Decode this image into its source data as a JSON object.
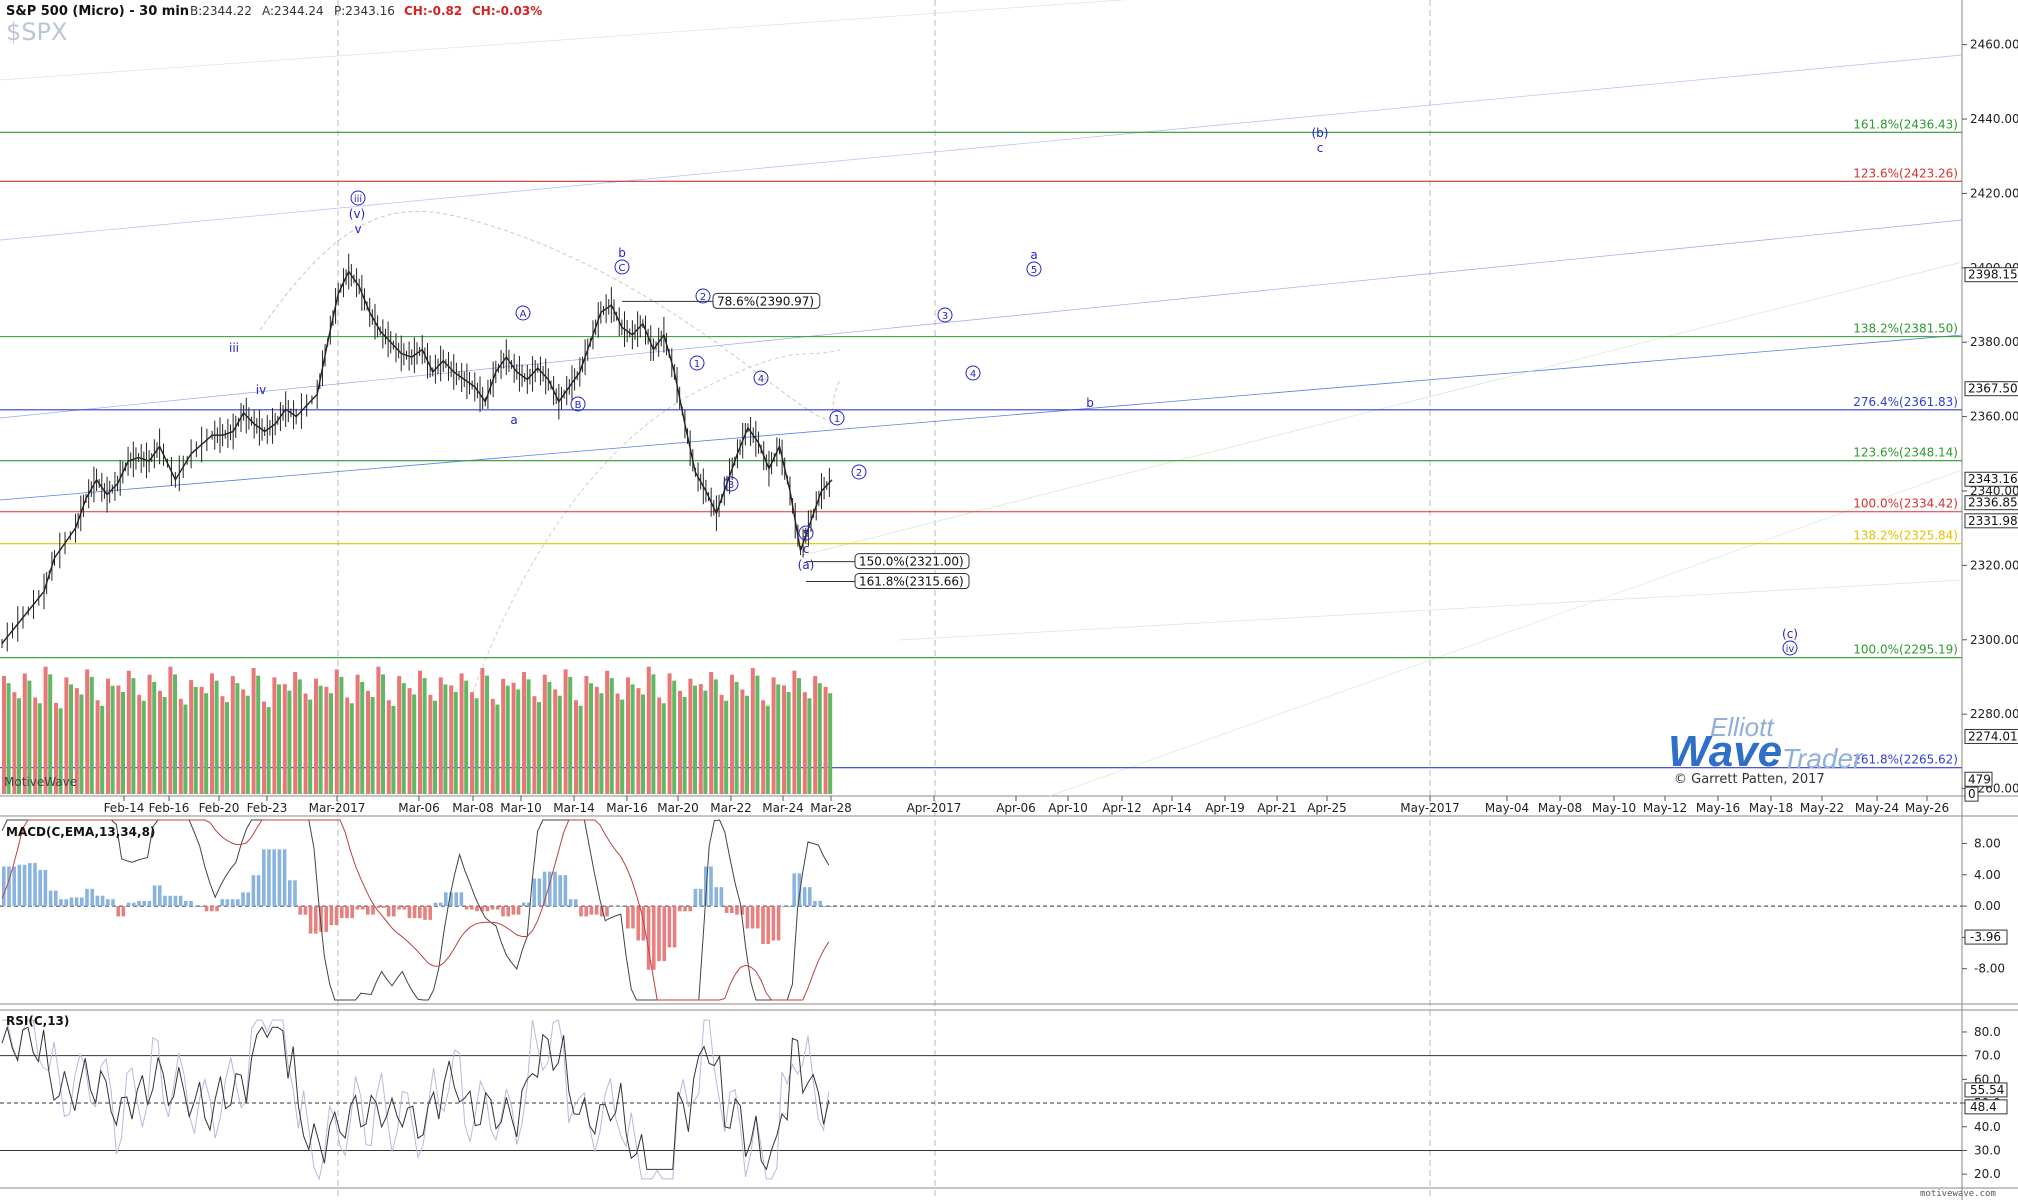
{
  "header": {
    "title": "S&P 500 (Micro) - 30 min",
    "bid": "B:2344.22",
    "ask": "A:2344.24",
    "price": "P:2343.16",
    "change": "CH:-0.82",
    "change_pct": "CH:-0.03%",
    "symbol_watermark": "$SPX"
  },
  "colors": {
    "up_bar": "#222222",
    "green_line": "#2e9a2e",
    "red_line": "#d33333",
    "blue_line": "#2f3fd3",
    "yellow_line": "#e6c000",
    "wave_label": "#2424c8",
    "vol_up": "#62b862",
    "vol_down": "#e87878"
  },
  "branding": {
    "motivewave": "MotiveWave",
    "logo_line1": "Elliott",
    "logo_line2": "Wave",
    "logo_line3": "Trader",
    "copyright": "© Garrett Patten, 2017",
    "site": "motivewave.com"
  },
  "chart_data": [
    {
      "type": "line",
      "title": "S&P 500 (Micro) - 30 min",
      "y_axis": {
        "range": [
          2258,
          2472
        ],
        "ticks": [
          2260,
          2280,
          2300,
          2320,
          2340,
          2360,
          2380,
          2400,
          2420,
          2440,
          2460
        ],
        "tick_labels": [
          "2260.00",
          "2280.00",
          "2300.00",
          "2320.00",
          "2340.00",
          "2360.00",
          "2380.00",
          "2400.00",
          "2420.00",
          "2440.00",
          "2460.00"
        ]
      },
      "x_axis_labels": [
        "Feb-14",
        "Feb-16",
        "Feb-20",
        "Feb-23",
        "Mar-2017",
        "Mar-06",
        "Mar-08",
        "Mar-10",
        "Mar-14",
        "Mar-16",
        "Mar-20",
        "Mar-22",
        "Mar-24",
        "Mar-28",
        "Apr-2017",
        "Apr-06",
        "Apr-10",
        "Apr-12",
        "Apr-14",
        "Apr-19",
        "Apr-21",
        "Apr-25",
        "May-2017",
        "May-04",
        "May-08",
        "May-10",
        "May-12",
        "May-16",
        "May-18",
        "May-22",
        "May-24",
        "May-26"
      ],
      "price_path": [
        [
          0,
          2299
        ],
        [
          4,
          2306
        ],
        [
          8,
          2313
        ],
        [
          10,
          2322
        ],
        [
          14,
          2330
        ],
        [
          16,
          2338
        ],
        [
          18,
          2343
        ],
        [
          20,
          2339
        ],
        [
          22,
          2342
        ],
        [
          24,
          2348
        ],
        [
          26,
          2349
        ],
        [
          28,
          2348
        ],
        [
          30,
          2352
        ],
        [
          33,
          2343
        ],
        [
          36,
          2350
        ],
        [
          40,
          2355
        ],
        [
          42,
          2355
        ],
        [
          44,
          2356
        ],
        [
          46,
          2361
        ],
        [
          48,
          2358
        ],
        [
          50,
          2356
        ],
        [
          52,
          2358
        ],
        [
          54,
          2362
        ],
        [
          56,
          2360
        ],
        [
          60,
          2366
        ],
        [
          62,
          2380
        ],
        [
          64,
          2393
        ],
        [
          66,
          2399
        ],
        [
          68,
          2395
        ],
        [
          70,
          2388
        ],
        [
          72,
          2383
        ],
        [
          74,
          2380
        ],
        [
          76,
          2377
        ],
        [
          78,
          2376
        ],
        [
          80,
          2378
        ],
        [
          82,
          2372
        ],
        [
          84,
          2375
        ],
        [
          86,
          2372
        ],
        [
          88,
          2370
        ],
        [
          90,
          2368
        ],
        [
          92,
          2364
        ],
        [
          94,
          2372
        ],
        [
          96,
          2376
        ],
        [
          98,
          2372
        ],
        [
          100,
          2370
        ],
        [
          102,
          2373
        ],
        [
          104,
          2370
        ],
        [
          106,
          2364
        ],
        [
          108,
          2368
        ],
        [
          110,
          2372
        ],
        [
          112,
          2380
        ],
        [
          114,
          2388
        ],
        [
          116,
          2390
        ],
        [
          118,
          2384
        ],
        [
          120,
          2382
        ],
        [
          122,
          2385
        ],
        [
          124,
          2378
        ],
        [
          126,
          2382
        ],
        [
          128,
          2372
        ],
        [
          130,
          2358
        ],
        [
          132,
          2345
        ],
        [
          134,
          2340
        ],
        [
          136,
          2334
        ],
        [
          138,
          2342
        ],
        [
          140,
          2350
        ],
        [
          142,
          2357
        ],
        [
          144,
          2353
        ],
        [
          146,
          2346
        ],
        [
          148,
          2352
        ],
        [
          150,
          2340
        ],
        [
          152,
          2324
        ],
        [
          154,
          2332
        ],
        [
          156,
          2340
        ],
        [
          158,
          2343
        ]
      ],
      "volume_relative": [
        0.88,
        0.76,
        0.9,
        0.72,
        0.95,
        0.68,
        0.87,
        0.79,
        0.93,
        0.7,
        0.86,
        0.81,
        0.92,
        0.74,
        0.89,
        0.77,
        0.95,
        0.71,
        0.85,
        0.8,
        0.9,
        0.73,
        0.88,
        0.78,
        0.94,
        0.69,
        0.87,
        0.82,
        0.91,
        0.75,
        0.86,
        0.8,
        0.93,
        0.72,
        0.89,
        0.77,
        0.95,
        0.7,
        0.88,
        0.79,
        0.92,
        0.74,
        0.87,
        0.81,
        0.9,
        0.76,
        0.94,
        0.71,
        0.86,
        0.83,
        0.91,
        0.73,
        0.89,
        0.78,
        0.93,
        0.7,
        0.88,
        0.8,
        0.92,
        0.75,
        0.87,
        0.79,
        0.95,
        0.72,
        0.9,
        0.77,
        0.86,
        0.82,
        0.91,
        0.74,
        0.89,
        0.78,
        0.94,
        0.7,
        0.87,
        0.81,
        0.92,
        0.76,
        0.88,
        0.8
      ],
      "fib_levels": [
        {
          "label": "161.8%(2436.43)",
          "value": 2436.43,
          "color": "green"
        },
        {
          "label": "123.6%(2423.26)",
          "value": 2423.26,
          "color": "red"
        },
        {
          "label": "138.2%(2381.50)",
          "value": 2381.5,
          "color": "green"
        },
        {
          "label": "276.4%(2361.83)",
          "value": 2361.83,
          "color": "blue"
        },
        {
          "label": "123.6%(2348.14)",
          "value": 2348.14,
          "color": "green"
        },
        {
          "label": "100.0%(2334.42)",
          "value": 2334.42,
          "color": "red"
        },
        {
          "label": "138.2%(2325.84)",
          "value": 2325.84,
          "color": "yellow"
        },
        {
          "label": "100.0%(2295.19)",
          "value": 2295.19,
          "color": "green"
        },
        {
          "label": "261.8%(2265.62)",
          "value": 2265.62,
          "color": "blue"
        }
      ],
      "price_badges": [
        {
          "label": "2398.15",
          "value": 2398.15
        },
        {
          "label": "2367.50",
          "value": 2367.5
        },
        {
          "label": "2343.16",
          "value": 2343.16
        },
        {
          "label": "2336.85",
          "value": 2336.85
        },
        {
          "label": "2331.98",
          "value": 2331.98
        },
        {
          "label": "2274.01",
          "value": 2274.01
        },
        {
          "label": "479",
          "value": 2262.5
        },
        {
          "label": "0",
          "value": 2258.5
        }
      ],
      "callouts": [
        {
          "label": "78.6%(2390.97)",
          "value": 2390.97
        },
        {
          "label": "150.0%(2321.00)",
          "value": 2321.0
        },
        {
          "label": "161.8%(2315.66)",
          "value": 2315.66
        }
      ],
      "wave_labels": [
        {
          "text": "iii"
        },
        {
          "text": "iv"
        },
        {
          "text": "iii",
          "circled": true
        },
        {
          "text": "(v)"
        },
        {
          "text": "v"
        },
        {
          "text": "A",
          "circled": true
        },
        {
          "text": "a"
        },
        {
          "text": "B",
          "circled": true
        },
        {
          "text": "b"
        },
        {
          "text": "C",
          "circled": true
        },
        {
          "text": "2",
          "circled": true
        },
        {
          "text": "1",
          "circled": true
        },
        {
          "text": "4",
          "circled": true
        },
        {
          "text": "3",
          "circled": true
        },
        {
          "text": "1",
          "circled": true
        },
        {
          "text": "2",
          "circled": true
        },
        {
          "text": "5",
          "circled": true
        },
        {
          "text": "c"
        },
        {
          "text": "(a)"
        },
        {
          "text": "3",
          "circled": true
        },
        {
          "text": "4",
          "circled": true
        },
        {
          "text": "a"
        },
        {
          "text": "5",
          "circled": true
        },
        {
          "text": "b"
        },
        {
          "text": "(b)"
        },
        {
          "text": "c"
        },
        {
          "text": "(c)"
        },
        {
          "text": "iv",
          "circled": true
        }
      ]
    },
    {
      "type": "line",
      "title": "MACD(C,EMA,13,34,8)",
      "y_axis": {
        "range": [
          -12,
          11
        ],
        "ticks": [
          8,
          4,
          0,
          -4,
          -8
        ],
        "tick_labels": [
          "8.00",
          "4.00",
          "0.00",
          "-4.00",
          "-8.00"
        ]
      },
      "badge": {
        "label": "-3.96",
        "value": -3.96
      }
    },
    {
      "type": "line",
      "title": "RSI(C,13)",
      "y_axis": {
        "range": [
          15,
          88
        ],
        "ticks": [
          80,
          70,
          60,
          50,
          40,
          30,
          20
        ],
        "tick_labels": [
          "80.0",
          "70.0",
          "60.0",
          "50.0",
          "40.0",
          "30.0",
          "20.0"
        ]
      },
      "levels": [
        70,
        30
      ],
      "badges": [
        {
          "label": "55.54",
          "value": 55.54
        },
        {
          "label": "48.4",
          "value": 48.4
        }
      ]
    }
  ]
}
